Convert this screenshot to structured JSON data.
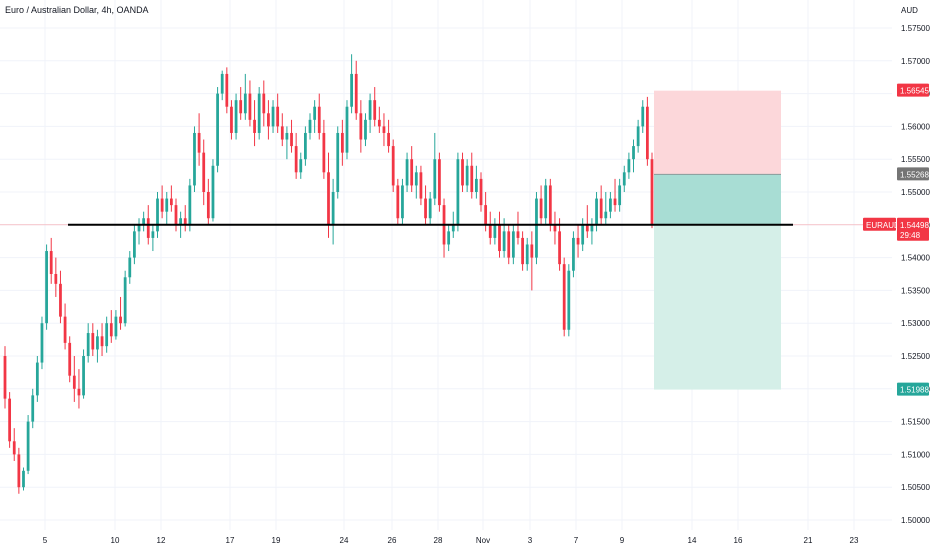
{
  "title": "Euro / Australian Dollar, 4h, OANDA",
  "currency_label": "AUD",
  "colors": {
    "up": "#26a69a",
    "down": "#f23645",
    "stop_zone": "#fcd7da",
    "target_zone": "#d5efe8",
    "target_zone_dark": "#a8ddd4",
    "level_line": "#000000",
    "grid": "#f0f3fa",
    "axis_text": "#131722",
    "tag_gray": "#757575"
  },
  "chart_data": {
    "type": "candlestick",
    "symbol": "EURAUD",
    "timeframe": "4h",
    "ylim": [
      1.498,
      1.578
    ],
    "y_ticks": [
      "1.57500",
      "1.57000",
      "1.56500",
      "1.56000",
      "1.55500",
      "1.55000",
      "1.54500",
      "1.54000",
      "1.53500",
      "1.53000",
      "1.52500",
      "1.52000",
      "1.51500",
      "1.51000",
      "1.50500",
      "1.50000"
    ],
    "x_ticks": [
      "5",
      "10",
      "12",
      "17",
      "19",
      "24",
      "26",
      "28",
      "Nov",
      "3",
      "7",
      "9",
      "14",
      "16",
      "21",
      "23"
    ],
    "candles": [
      [
        1.525,
        1.5265,
        1.517,
        1.5185
      ],
      [
        1.5185,
        1.5195,
        1.511,
        1.512
      ],
      [
        1.512,
        1.514,
        1.509,
        1.51
      ],
      [
        1.51,
        1.511,
        1.504,
        1.505
      ],
      [
        1.505,
        1.508,
        1.5045,
        1.5075
      ],
      [
        1.5075,
        1.516,
        1.507,
        1.515
      ],
      [
        1.515,
        1.52,
        1.514,
        1.519
      ],
      [
        1.519,
        1.525,
        1.518,
        1.524
      ],
      [
        1.524,
        1.531,
        1.523,
        1.53
      ],
      [
        1.53,
        1.542,
        1.529,
        1.541
      ],
      [
        1.541,
        1.543,
        1.536,
        1.5375
      ],
      [
        1.5375,
        1.54,
        1.534,
        1.536
      ],
      [
        1.536,
        1.538,
        1.53,
        1.531
      ],
      [
        1.531,
        1.533,
        1.526,
        1.527
      ],
      [
        1.527,
        1.528,
        1.521,
        1.522
      ],
      [
        1.522,
        1.525,
        1.518,
        1.52
      ],
      [
        1.52,
        1.523,
        1.517,
        1.519
      ],
      [
        1.519,
        1.526,
        1.5185,
        1.525
      ],
      [
        1.525,
        1.53,
        1.524,
        1.5285
      ],
      [
        1.5285,
        1.53,
        1.525,
        1.526
      ],
      [
        1.526,
        1.529,
        1.524,
        1.528
      ],
      [
        1.528,
        1.53,
        1.525,
        1.5265
      ],
      [
        1.5265,
        1.531,
        1.5255,
        1.53
      ],
      [
        1.53,
        1.532,
        1.527,
        1.528
      ],
      [
        1.528,
        1.532,
        1.5275,
        1.531
      ],
      [
        1.531,
        1.534,
        1.529,
        1.53
      ],
      [
        1.53,
        1.538,
        1.5295,
        1.537
      ],
      [
        1.537,
        1.541,
        1.536,
        1.54
      ],
      [
        1.54,
        1.545,
        1.539,
        1.544
      ],
      [
        1.544,
        1.546,
        1.542,
        1.545
      ],
      [
        1.545,
        1.547,
        1.544,
        1.546
      ],
      [
        1.546,
        1.548,
        1.542,
        1.543
      ],
      [
        1.543,
        1.545,
        1.541,
        1.544
      ],
      [
        1.544,
        1.55,
        1.543,
        1.549
      ],
      [
        1.549,
        1.551,
        1.546,
        1.547
      ],
      [
        1.547,
        1.55,
        1.545,
        1.549
      ],
      [
        1.549,
        1.551,
        1.547,
        1.548
      ],
      [
        1.548,
        1.549,
        1.544,
        1.545
      ],
      [
        1.545,
        1.547,
        1.543,
        1.546
      ],
      [
        1.546,
        1.548,
        1.544,
        1.545
      ],
      [
        1.545,
        1.552,
        1.544,
        1.551
      ],
      [
        1.551,
        1.56,
        1.55,
        1.559
      ],
      [
        1.559,
        1.562,
        1.554,
        1.556
      ],
      [
        1.556,
        1.558,
        1.548,
        1.55
      ],
      [
        1.55,
        1.552,
        1.545,
        1.546
      ],
      [
        1.546,
        1.555,
        1.5455,
        1.554
      ],
      [
        1.554,
        1.566,
        1.553,
        1.565
      ],
      [
        1.565,
        1.5685,
        1.564,
        1.568
      ],
      [
        1.568,
        1.569,
        1.562,
        1.563
      ],
      [
        1.563,
        1.564,
        1.558,
        1.559
      ],
      [
        1.559,
        1.565,
        1.558,
        1.564
      ],
      [
        1.564,
        1.566,
        1.561,
        1.562
      ],
      [
        1.562,
        1.568,
        1.561,
        1.565
      ],
      [
        1.565,
        1.567,
        1.56,
        1.561
      ],
      [
        1.561,
        1.564,
        1.557,
        1.559
      ],
      [
        1.559,
        1.566,
        1.558,
        1.565
      ],
      [
        1.565,
        1.567,
        1.56,
        1.562
      ],
      [
        1.562,
        1.564,
        1.558,
        1.56
      ],
      [
        1.56,
        1.564,
        1.559,
        1.563
      ],
      [
        1.563,
        1.565,
        1.559,
        1.56
      ],
      [
        1.56,
        1.562,
        1.557,
        1.558
      ],
      [
        1.558,
        1.56,
        1.555,
        1.559
      ],
      [
        1.559,
        1.561,
        1.556,
        1.557
      ],
      [
        1.557,
        1.559,
        1.552,
        1.553
      ],
      [
        1.553,
        1.556,
        1.552,
        1.555
      ],
      [
        1.555,
        1.56,
        1.554,
        1.559
      ],
      [
        1.559,
        1.562,
        1.558,
        1.561
      ],
      [
        1.561,
        1.564,
        1.559,
        1.563
      ],
      [
        1.563,
        1.565,
        1.558,
        1.559
      ],
      [
        1.559,
        1.561,
        1.552,
        1.553
      ],
      [
        1.553,
        1.556,
        1.543,
        1.545
      ],
      [
        1.545,
        1.552,
        1.542,
        1.55
      ],
      [
        1.55,
        1.56,
        1.549,
        1.559
      ],
      [
        1.559,
        1.561,
        1.554,
        1.556
      ],
      [
        1.556,
        1.564,
        1.555,
        1.563
      ],
      [
        1.563,
        1.571,
        1.562,
        1.568
      ],
      [
        1.568,
        1.57,
        1.561,
        1.562
      ],
      [
        1.562,
        1.564,
        1.556,
        1.558
      ],
      [
        1.558,
        1.562,
        1.557,
        1.561
      ],
      [
        1.561,
        1.565,
        1.559,
        1.564
      ],
      [
        1.564,
        1.566,
        1.56,
        1.561
      ],
      [
        1.561,
        1.563,
        1.559,
        1.56
      ],
      [
        1.56,
        1.562,
        1.557,
        1.559
      ],
      [
        1.559,
        1.561,
        1.556,
        1.557
      ],
      [
        1.557,
        1.558,
        1.55,
        1.551
      ],
      [
        1.551,
        1.552,
        1.545,
        1.546
      ],
      [
        1.546,
        1.552,
        1.545,
        1.551
      ],
      [
        1.551,
        1.556,
        1.55,
        1.555
      ],
      [
        1.555,
        1.557,
        1.55,
        1.551
      ],
      [
        1.551,
        1.554,
        1.549,
        1.553
      ],
      [
        1.553,
        1.554,
        1.548,
        1.549
      ],
      [
        1.549,
        1.551,
        1.545,
        1.546
      ],
      [
        1.546,
        1.55,
        1.545,
        1.549
      ],
      [
        1.549,
        1.559,
        1.548,
        1.555
      ],
      [
        1.555,
        1.556,
        1.547,
        1.548
      ],
      [
        1.548,
        1.549,
        1.54,
        1.542
      ],
      [
        1.542,
        1.545,
        1.541,
        1.544
      ],
      [
        1.544,
        1.547,
        1.543,
        1.545
      ],
      [
        1.545,
        1.556,
        1.544,
        1.555
      ],
      [
        1.555,
        1.556,
        1.55,
        1.551
      ],
      [
        1.551,
        1.555,
        1.55,
        1.554
      ],
      [
        1.554,
        1.556,
        1.549,
        1.55
      ],
      [
        1.55,
        1.554,
        1.549,
        1.552
      ],
      [
        1.552,
        1.553,
        1.547,
        1.548
      ],
      [
        1.548,
        1.55,
        1.544,
        1.545
      ],
      [
        1.545,
        1.547,
        1.542,
        1.543
      ],
      [
        1.543,
        1.546,
        1.542,
        1.545
      ],
      [
        1.545,
        1.547,
        1.54,
        1.541
      ],
      [
        1.541,
        1.546,
        1.54,
        1.544
      ],
      [
        1.544,
        1.545,
        1.539,
        1.54
      ],
      [
        1.54,
        1.545,
        1.539,
        1.544
      ],
      [
        1.544,
        1.547,
        1.542,
        1.543
      ],
      [
        1.543,
        1.544,
        1.538,
        1.539
      ],
      [
        1.539,
        1.543,
        1.538,
        1.542
      ],
      [
        1.542,
        1.544,
        1.535,
        1.54
      ],
      [
        1.54,
        1.55,
        1.539,
        1.549
      ],
      [
        1.549,
        1.551,
        1.545,
        1.546
      ],
      [
        1.546,
        1.552,
        1.545,
        1.551
      ],
      [
        1.551,
        1.552,
        1.544,
        1.545
      ],
      [
        1.545,
        1.547,
        1.542,
        1.544
      ],
      [
        1.544,
        1.546,
        1.538,
        1.539
      ],
      [
        1.539,
        1.54,
        1.528,
        1.529
      ],
      [
        1.529,
        1.539,
        1.528,
        1.538
      ],
      [
        1.538,
        1.544,
        1.537,
        1.543
      ],
      [
        1.543,
        1.545,
        1.54,
        1.542
      ],
      [
        1.542,
        1.546,
        1.541,
        1.545
      ],
      [
        1.545,
        1.548,
        1.543,
        1.544
      ],
      [
        1.544,
        1.546,
        1.542,
        1.545
      ],
      [
        1.545,
        1.55,
        1.544,
        1.549
      ],
      [
        1.549,
        1.551,
        1.545,
        1.546
      ],
      [
        1.546,
        1.55,
        1.545,
        1.547
      ],
      [
        1.547,
        1.55,
        1.546,
        1.549
      ],
      [
        1.549,
        1.552,
        1.547,
        1.548
      ],
      [
        1.548,
        1.552,
        1.547,
        1.551
      ],
      [
        1.551,
        1.554,
        1.55,
        1.553
      ],
      [
        1.553,
        1.556,
        1.552,
        1.555
      ],
      [
        1.555,
        1.558,
        1.553,
        1.557
      ],
      [
        1.557,
        1.561,
        1.556,
        1.56
      ],
      [
        1.56,
        1.564,
        1.559,
        1.563
      ],
      [
        1.563,
        1.5645,
        1.554,
        1.555
      ],
      [
        1.555,
        1.556,
        1.5445,
        1.545
      ]
    ],
    "horizontal_level": 1.545,
    "position": {
      "type": "short",
      "entry": 1.55268,
      "stop": 1.56545,
      "target": 1.51988
    },
    "price_labels": {
      "stop": "1.56545",
      "entry": "1.55268",
      "current_symbol": "EURAUD",
      "current_price": "1.54498",
      "countdown": "29:48",
      "target": "1.51988"
    }
  }
}
